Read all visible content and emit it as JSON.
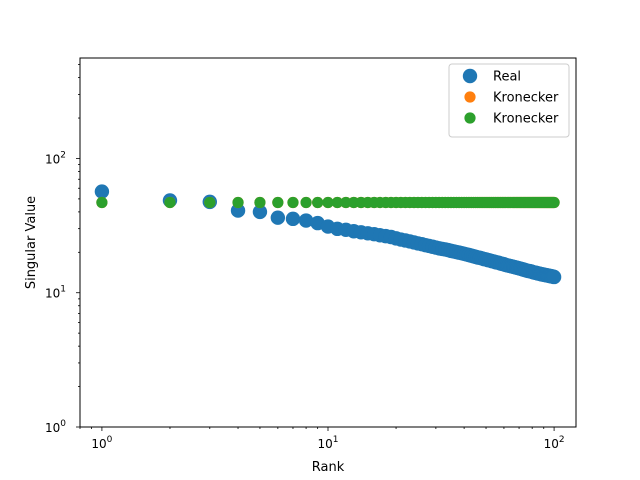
{
  "chart_data": {
    "type": "scatter",
    "xlabel": "Rank",
    "ylabel": "Singular Value",
    "xscale": "log",
    "yscale": "log",
    "xlim": [
      0.8,
      125
    ],
    "ylim": [
      1,
      560
    ],
    "grid": false,
    "legend_position": "top-right",
    "x_ticks": [
      {
        "value": 1,
        "base": "10",
        "exp": "0"
      },
      {
        "value": 10,
        "base": "10",
        "exp": "1"
      },
      {
        "value": 100,
        "base": "10",
        "exp": "2"
      }
    ],
    "y_ticks": [
      {
        "value": 1,
        "base": "10",
        "exp": "0"
      },
      {
        "value": 10,
        "base": "10",
        "exp": "1"
      },
      {
        "value": 100,
        "base": "10",
        "exp": "2"
      }
    ],
    "series": [
      {
        "name": "Real",
        "color": "#1f77b4",
        "marker_size": "large",
        "x": [
          1,
          2,
          3,
          4,
          5,
          6,
          7,
          8,
          9,
          10,
          11,
          12,
          13,
          14,
          15,
          16,
          17,
          18,
          19,
          20,
          21,
          22,
          23,
          24,
          25,
          26,
          27,
          28,
          29,
          30,
          31,
          32,
          33,
          34,
          35,
          36,
          37,
          38,
          39,
          40,
          41,
          42,
          43,
          44,
          45,
          46,
          47,
          48,
          49,
          50,
          51,
          52,
          53,
          54,
          55,
          56,
          57,
          58,
          59,
          60,
          61,
          62,
          63,
          64,
          65,
          66,
          67,
          68,
          69,
          70,
          71,
          72,
          73,
          74,
          75,
          76,
          77,
          78,
          79,
          80,
          81,
          82,
          83,
          84,
          85,
          86,
          87,
          88,
          89,
          90,
          91,
          92,
          93,
          94,
          95,
          96,
          97,
          98,
          99,
          100
        ],
        "y": [
          56.7,
          48.7,
          47.5,
          40.9,
          40.0,
          36.2,
          35.5,
          34.5,
          33.0,
          31.1,
          29.9,
          29.4,
          28.7,
          28.2,
          27.7,
          27.3,
          26.8,
          26.4,
          26.0,
          25.4,
          24.9,
          24.5,
          24.1,
          23.7,
          23.3,
          23.0,
          22.6,
          22.3,
          22.0,
          21.7,
          21.4,
          21.2,
          21.0,
          20.8,
          20.5,
          20.3,
          20.1,
          19.9,
          19.7,
          19.5,
          19.3,
          19.1,
          18.9,
          18.7,
          18.5,
          18.3,
          18.2,
          18.0,
          17.8,
          17.7,
          17.5,
          17.4,
          17.2,
          17.1,
          16.9,
          16.8,
          16.7,
          16.5,
          16.4,
          16.3,
          16.1,
          16.0,
          15.9,
          15.8,
          15.7,
          15.6,
          15.5,
          15.4,
          15.3,
          15.2,
          15.1,
          15.0,
          14.9,
          14.8,
          14.7,
          14.6,
          14.5,
          14.5,
          14.4,
          14.3,
          14.2,
          14.1,
          14.1,
          14.0,
          13.9,
          13.9,
          13.8,
          13.7,
          13.7,
          13.6,
          13.6,
          13.5,
          13.5,
          13.4,
          13.4,
          13.3,
          13.3,
          13.2,
          13.2,
          13.1
        ]
      },
      {
        "name": "Kronecker",
        "color": "#ff7f0e",
        "marker_size": "medium",
        "x": [
          1,
          2,
          3,
          4,
          5,
          6,
          7,
          8,
          9,
          10,
          11,
          12,
          13,
          14,
          15,
          16,
          17,
          18,
          19,
          20,
          21,
          22,
          23,
          24,
          25,
          26,
          27,
          28,
          29,
          30,
          31,
          32,
          33,
          34,
          35,
          36,
          37,
          38,
          39,
          40,
          41,
          42,
          43,
          44,
          45,
          46,
          47,
          48,
          49,
          50,
          51,
          52,
          53,
          54,
          55,
          56,
          57,
          58,
          59,
          60,
          61,
          62,
          63,
          64,
          65,
          66,
          67,
          68,
          69,
          70,
          71,
          72,
          73,
          74,
          75,
          76,
          77,
          78,
          79,
          80,
          81,
          82,
          83,
          84,
          85,
          86,
          87,
          88,
          89,
          90,
          91,
          92,
          93,
          94,
          95,
          96,
          97,
          98,
          99,
          100
        ],
        "y": [
          47,
          47,
          47,
          47,
          47,
          47,
          47,
          47,
          47,
          47,
          47,
          47,
          47,
          47,
          47,
          47,
          47,
          47,
          47,
          47,
          47,
          47,
          47,
          47,
          47,
          47,
          47,
          47,
          47,
          47,
          47,
          47,
          47,
          47,
          47,
          47,
          47,
          47,
          47,
          47,
          47,
          47,
          47,
          47,
          47,
          47,
          47,
          47,
          47,
          47,
          47,
          47,
          47,
          47,
          47,
          47,
          47,
          47,
          47,
          47,
          47,
          47,
          47,
          47,
          47,
          47,
          47,
          47,
          47,
          47,
          47,
          47,
          47,
          47,
          47,
          47,
          47,
          47,
          47,
          47,
          47,
          47,
          47,
          47,
          47,
          47,
          47,
          47,
          47,
          47,
          47,
          47,
          47,
          47,
          47,
          47,
          47,
          47,
          47,
          47
        ]
      },
      {
        "name": "Kronecker",
        "color": "#2ca02c",
        "marker_size": "medium",
        "x": [
          1,
          2,
          3,
          4,
          5,
          6,
          7,
          8,
          9,
          10,
          11,
          12,
          13,
          14,
          15,
          16,
          17,
          18,
          19,
          20,
          21,
          22,
          23,
          24,
          25,
          26,
          27,
          28,
          29,
          30,
          31,
          32,
          33,
          34,
          35,
          36,
          37,
          38,
          39,
          40,
          41,
          42,
          43,
          44,
          45,
          46,
          47,
          48,
          49,
          50,
          51,
          52,
          53,
          54,
          55,
          56,
          57,
          58,
          59,
          60,
          61,
          62,
          63,
          64,
          65,
          66,
          67,
          68,
          69,
          70,
          71,
          72,
          73,
          74,
          75,
          76,
          77,
          78,
          79,
          80,
          81,
          82,
          83,
          84,
          85,
          86,
          87,
          88,
          89,
          90,
          91,
          92,
          93,
          94,
          95,
          96,
          97,
          98,
          99,
          100
        ],
        "y": [
          47,
          47,
          47,
          47,
          47,
          47,
          47,
          47,
          47,
          47,
          47,
          47,
          47,
          47,
          47,
          47,
          47,
          47,
          47,
          47,
          47,
          47,
          47,
          47,
          47,
          47,
          47,
          47,
          47,
          47,
          47,
          47,
          47,
          47,
          47,
          47,
          47,
          47,
          47,
          47,
          47,
          47,
          47,
          47,
          47,
          47,
          47,
          47,
          47,
          47,
          47,
          47,
          47,
          47,
          47,
          47,
          47,
          47,
          47,
          47,
          47,
          47,
          47,
          47,
          47,
          47,
          47,
          47,
          47,
          47,
          47,
          47,
          47,
          47,
          47,
          47,
          47,
          47,
          47,
          47,
          47,
          47,
          47,
          47,
          47,
          47,
          47,
          47,
          47,
          47,
          47,
          47,
          47,
          47,
          47,
          47,
          47,
          47,
          47,
          47
        ]
      }
    ]
  }
}
